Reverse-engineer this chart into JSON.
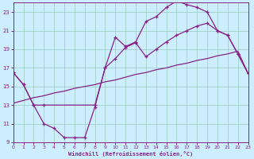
{
  "xlabel": "Windchill (Refroidissement éolien,°C)",
  "xlim": [
    0,
    23
  ],
  "ylim": [
    9,
    24
  ],
  "xticks": [
    0,
    1,
    2,
    3,
    4,
    5,
    6,
    7,
    8,
    9,
    10,
    11,
    12,
    13,
    14,
    15,
    16,
    17,
    18,
    19,
    20,
    21,
    22,
    23
  ],
  "yticks": [
    9,
    11,
    13,
    15,
    17,
    19,
    21,
    23
  ],
  "bg_color": "#cceeff",
  "line_color": "#882288",
  "grid_color": "#99ccbb",
  "line1_x": [
    0,
    1,
    2,
    3,
    4,
    5,
    6,
    7,
    8,
    9,
    10,
    11,
    12,
    13,
    14,
    15,
    16,
    17,
    18,
    19,
    20,
    21,
    22,
    23
  ],
  "line1_y": [
    16.5,
    15.2,
    13.0,
    11.0,
    10.5,
    9.5,
    9.5,
    9.5,
    12.8,
    17.0,
    20.3,
    19.3,
    19.8,
    22.0,
    22.5,
    23.5,
    24.2,
    23.8,
    23.5,
    23.0,
    21.0,
    20.5,
    18.5,
    16.4
  ],
  "line2_x": [
    0,
    1,
    2,
    3,
    8,
    9,
    10,
    11,
    12,
    13,
    14,
    15,
    16,
    17,
    18,
    19,
    20,
    21,
    22,
    23
  ],
  "line2_y": [
    16.5,
    15.2,
    13.0,
    13.0,
    13.0,
    17.0,
    18.0,
    19.2,
    19.7,
    18.2,
    19.0,
    19.8,
    20.5,
    21.0,
    21.5,
    21.8,
    21.0,
    20.5,
    18.5,
    16.4
  ],
  "line3_x": [
    0,
    1,
    2,
    3,
    4,
    5,
    6,
    7,
    8,
    9,
    10,
    11,
    12,
    13,
    14,
    15,
    16,
    17,
    18,
    19,
    20,
    21,
    22,
    23
  ],
  "line3_y": [
    13.2,
    13.5,
    13.8,
    14.0,
    14.3,
    14.5,
    14.8,
    15.0,
    15.2,
    15.5,
    15.7,
    16.0,
    16.3,
    16.5,
    16.8,
    17.0,
    17.3,
    17.5,
    17.8,
    18.0,
    18.3,
    18.5,
    18.8,
    16.4
  ]
}
